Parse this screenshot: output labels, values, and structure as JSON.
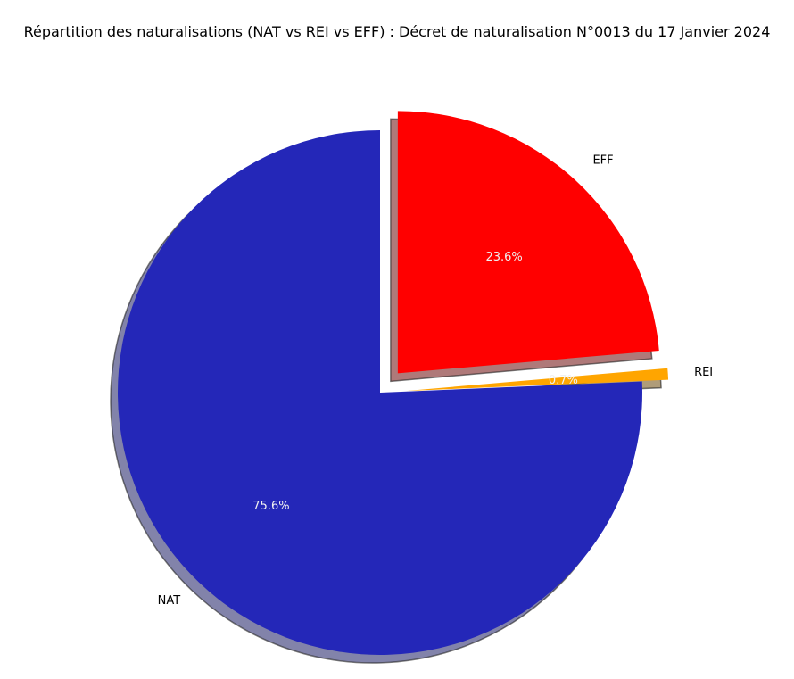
{
  "chart_data": {
    "type": "pie",
    "title": "Répartition des naturalisations (NAT vs REI vs EFF) : Décret de naturalisation N°0013 du 17 Janvier 2024",
    "slices": [
      {
        "label": "NAT",
        "value": 75.6,
        "pct_label": "75.6%",
        "color": "#2427b8",
        "shadow_color": "#2e3072",
        "exploded": false
      },
      {
        "label": "REI",
        "value": 0.7,
        "pct_label": "0.7%",
        "color": "#ffa500",
        "shadow_color": "#7a5a20",
        "exploded": true
      },
      {
        "label": "EFF",
        "value": 23.6,
        "pct_label": "23.6%",
        "color": "#ff0000",
        "shadow_color": "#7a2020",
        "exploded": true
      }
    ],
    "start_angle_deg": 90,
    "direction": "counterclockwise",
    "shadow": true,
    "legend": "none"
  }
}
